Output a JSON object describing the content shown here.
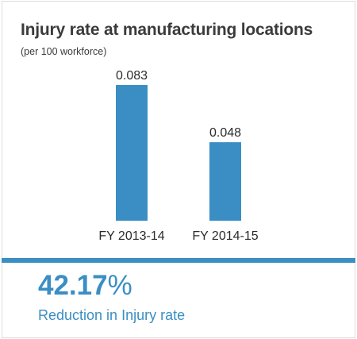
{
  "header": {
    "title": "Injury rate at manufacturing locations",
    "subtitle": "(per 100 workforce)"
  },
  "chart_data": {
    "type": "bar",
    "title": "Injury rate at manufacturing locations",
    "subtitle": "(per 100 workforce)",
    "categories": [
      "FY 2013-14",
      "FY 2014-15"
    ],
    "values": [
      0.083,
      0.048
    ],
    "value_labels": [
      "0.083",
      "0.048"
    ],
    "xlabel": "",
    "ylabel": "",
    "ylim": [
      0,
      0.1
    ],
    "grid": false,
    "bar_color": "#3a8ec4"
  },
  "summary": {
    "value": "42.17",
    "unit": "%",
    "label": "Reduction in Injury rate"
  },
  "colors": {
    "accent": "#3a8ec4",
    "text": "#3b3b3b"
  }
}
